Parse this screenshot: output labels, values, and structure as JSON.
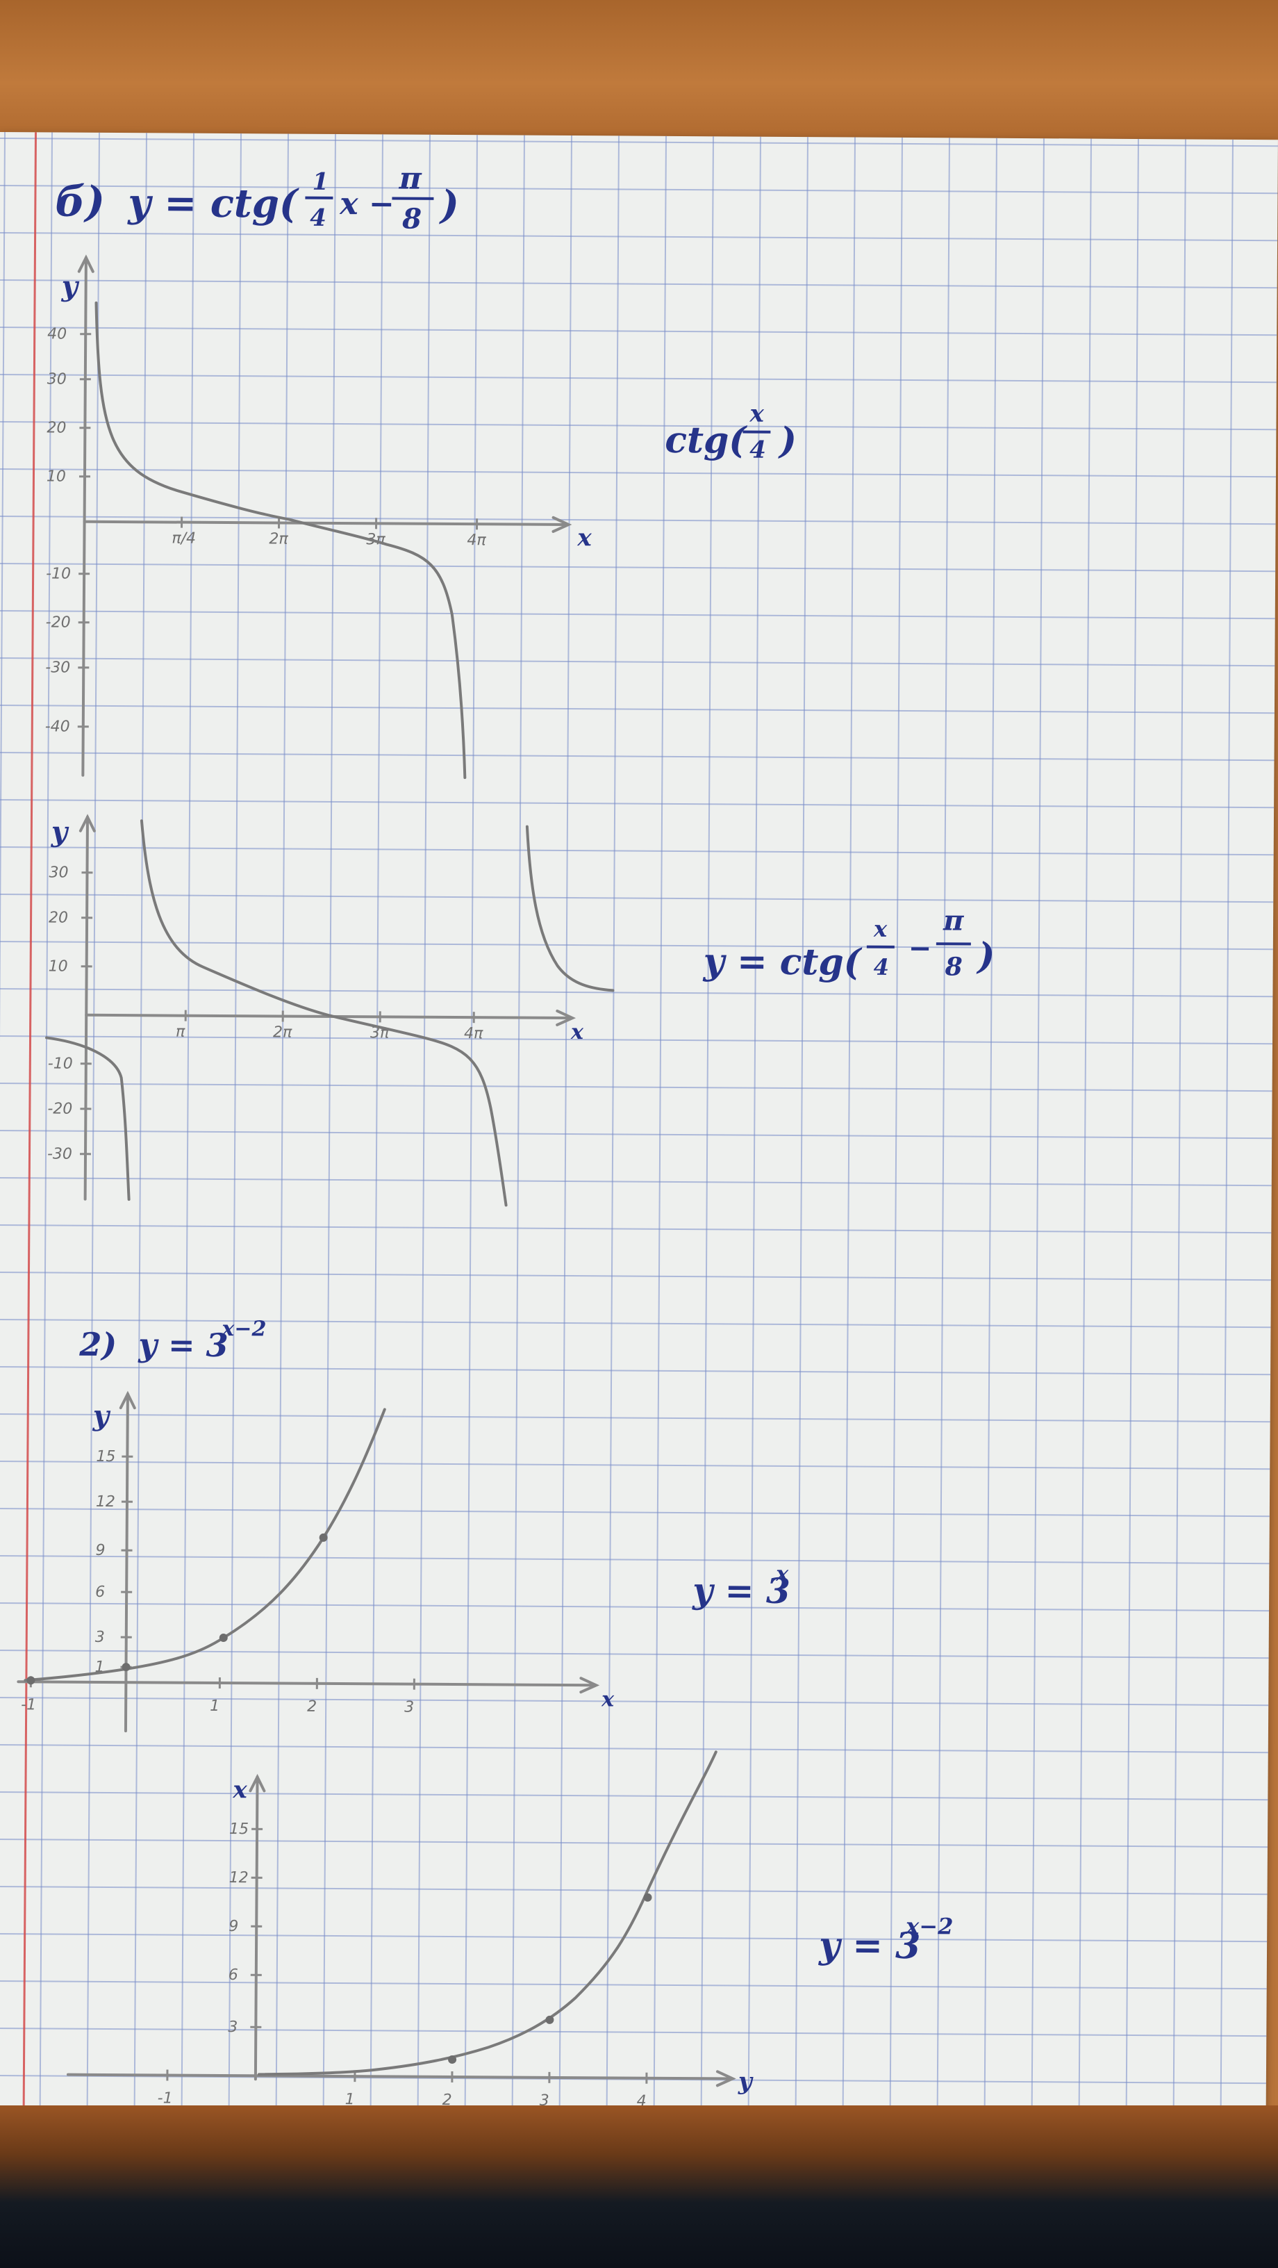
{
  "heading_b": "б)",
  "formula_b_left": "y = ctg(",
  "formula_b_num": "1",
  "formula_b_den": "4",
  "formula_b_mid": "x −",
  "formula_b_pi": "π",
  "formula_b_eight": "8",
  "formula_b_close": ")",
  "label_ctg_x4": {
    "text": "ctg(",
    "num": "x",
    "den": "4",
    "close": ")"
  },
  "label_ctg_shift": {
    "text": "y = ctg(",
    "num": "x",
    "den": "4",
    "mid": "−",
    "pi": "π",
    "eight": "8",
    "close": ")"
  },
  "heading_2": "2)",
  "formula_2": "y = 3",
  "formula_2_exp": "x−2",
  "label_3x": {
    "base": "y = 3",
    "exp": "x"
  },
  "label_3x2": {
    "base": "y = 3",
    "exp": "x−2"
  },
  "graph1": {
    "y_label": "y",
    "x_label": "x",
    "y_ticks": [
      "40",
      "30",
      "20",
      "10",
      "-10",
      "-20",
      "-30",
      "-40"
    ],
    "x_ticks": [
      "π/4",
      "2π",
      "3π",
      "4π"
    ]
  },
  "graph2": {
    "y_label": "y",
    "x_label": "x",
    "y_ticks": [
      "30",
      "20",
      "10",
      "-10",
      "-20",
      "-30"
    ],
    "x_ticks": [
      "π",
      "2π",
      "3π",
      "4π"
    ]
  },
  "graph3": {
    "y_label": "y",
    "x_label": "x",
    "y_ticks": [
      "15",
      "12",
      "9",
      "6",
      "3",
      "1"
    ],
    "x_ticks": [
      "-1",
      "1",
      "2",
      "3"
    ]
  },
  "graph4": {
    "y_label": "x",
    "x_label": "y",
    "y_ticks": [
      "15",
      "12",
      "9",
      "6",
      "3"
    ],
    "x_ticks": [
      "-1",
      "1",
      "2",
      "3",
      "4"
    ]
  }
}
